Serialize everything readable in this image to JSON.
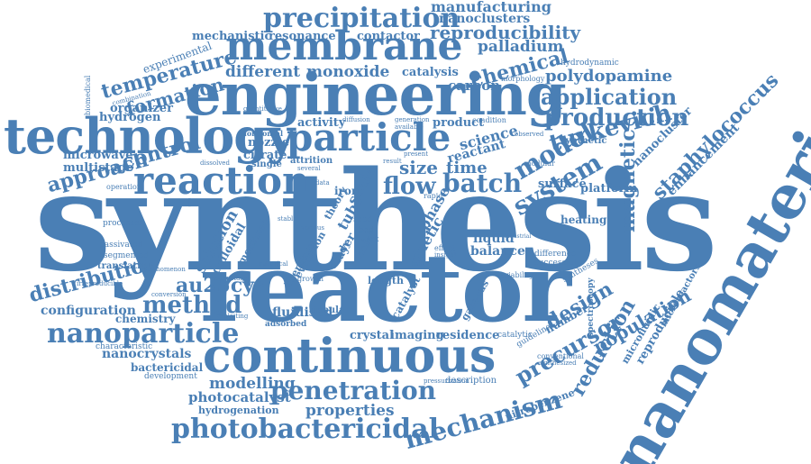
{
  "colors": {
    "word": "#4a7fb5",
    "background": "#ffffff"
  },
  "words": {
    "synthesis": "synthesis",
    "reactor": "reactor",
    "nanomaterials": "nanomaterials",
    "engineering": "engineering",
    "technology": "technology",
    "membrane": "membrane",
    "continuous": "continuous",
    "particle": "particle",
    "reaction": "reaction",
    "precipitation": "precipitation",
    "manufacturing": "manufacturing",
    "nanoclusters": "nanoclusters",
    "reproducibility": "reproducibility",
    "mechanistic": "mechanistic",
    "resonance": "resonance",
    "contactor": "contactor",
    "palladium": "palladium",
    "experimental": "experimental",
    "temperature": "temperature",
    "formation": "formation",
    "different": "different",
    "monoxide": "monoxide",
    "catalysis": "catalysis",
    "carbon": "carbon",
    "chemical": "chemical",
    "polydopamine": "polydopamine",
    "application": "application",
    "production": "production",
    "hydrodynamic": "hydrodynamic",
    "morphology": "morphology",
    "hydrogen": "hydrogen",
    "organizer": "organizer",
    "activity": "activity",
    "product": "product",
    "turkevich": "turkevich",
    "staphylococcus": "staphylococcus",
    "nanocluster": "nanocluster",
    "magnetic": "magnetic",
    "enhancement": "enhancement",
    "microwave": "microwave",
    "multistage": "multistage",
    "nozzle": "nozzle",
    "citrate": "citrate",
    "single": "single",
    "science": "science",
    "model": "model",
    "control": "control",
    "approach": "approach",
    "operation": "operation",
    "flow": "flow",
    "batch": "batch",
    "system": "system",
    "time": "time",
    "size": "size",
    "reactant": "reactant",
    "surface": "surface",
    "platform": "platform",
    "synthetic": "synthetic",
    "modular": "modular",
    "processes": "processes",
    "heating": "heating",
    "solution": "solution",
    "colloidal": "colloidal",
    "kinetic": "kinetic",
    "liquid": "liquid",
    "balance": "balance",
    "phase": "phase",
    "passivated": "passivated",
    "segmented": "segmented",
    "translation": "translation",
    "distribution": "distribution",
    "au25cys": "au25cys",
    "method": "method",
    "configuration": "configuration",
    "chemistry": "chemistry",
    "nanoparticle": "nanoparticle",
    "crystal": "crystal",
    "imaging": "imaging",
    "residence": "residence",
    "design": "design",
    "precursor": "precursor",
    "reduction": "reduction",
    "population": "population",
    "reproducible": "reproducible",
    "microfluidic": "microfluidic",
    "microreactors": "microreactors",
    "spectroscopy": "spectroscopy",
    "fluidised": "fluidised",
    "tubular": "tubular",
    "adsorbed": "adsorbed",
    "length": "length",
    "nanocrystals": "nanocrystals",
    "bactericidal": "bactericidal",
    "development": "development",
    "modelling": "modelling",
    "penetration": "penetration",
    "photocatalyst": "photocatalyst",
    "hydrogenation": "hydrogenation",
    "properties": "properties",
    "photobactericidal": "photobactericidal",
    "mechanism": "mechanism",
    "description": "description",
    "nitrobenzene": "nitrobenzene",
    "characteristic": "characteristic",
    "irreproducible": "irreproducible",
    "conversion": "conversion",
    "advantage": "advantage",
    "growth": "growth",
    "mediated": "mediated",
    "literature": "literature",
    "evolution": "evolution",
    "theory": "theory",
    "tube": "tube",
    "iron": "iron",
    "scale": "scale",
    "layer": "layer",
    "study": "study",
    "violet": "violet",
    "catalyst": "catalyst",
    "gaseous": "gaseous",
    "catalytic": "catalytic",
    "syntheses": "syntheses",
    "difference": "difference",
    "successful": "successful",
    "conventional": "conventional",
    "synthesized": "synthesized",
    "number": "number",
    "biomedical": "biomedical",
    "horizontal": "horizontal",
    "attrition": "attrition",
    "generation": "generation",
    "available": "available",
    "condition": "condition",
    "observed": "observed",
    "diffusion": "diffusion",
    "combination": "combination",
    "quantitative": "quantitative",
    "dissolved": "dissolved",
    "several": "several",
    "result": "result",
    "present": "present",
    "rapid": "rapid",
    "effect": "effect",
    "insight": "insight",
    "variability": "variability",
    "spherical": "spherical",
    "phenomenon": "phenomenon",
    "exploiting": "exploiting",
    "guideline": "guideline",
    "pressurization": "pressurization",
    "industrial": "industrial",
    "teflon": "teflon",
    "various": "various",
    "stable": "stable",
    "seed": "seed",
    "bed": "bed",
    "work": "work",
    "data": "data"
  }
}
